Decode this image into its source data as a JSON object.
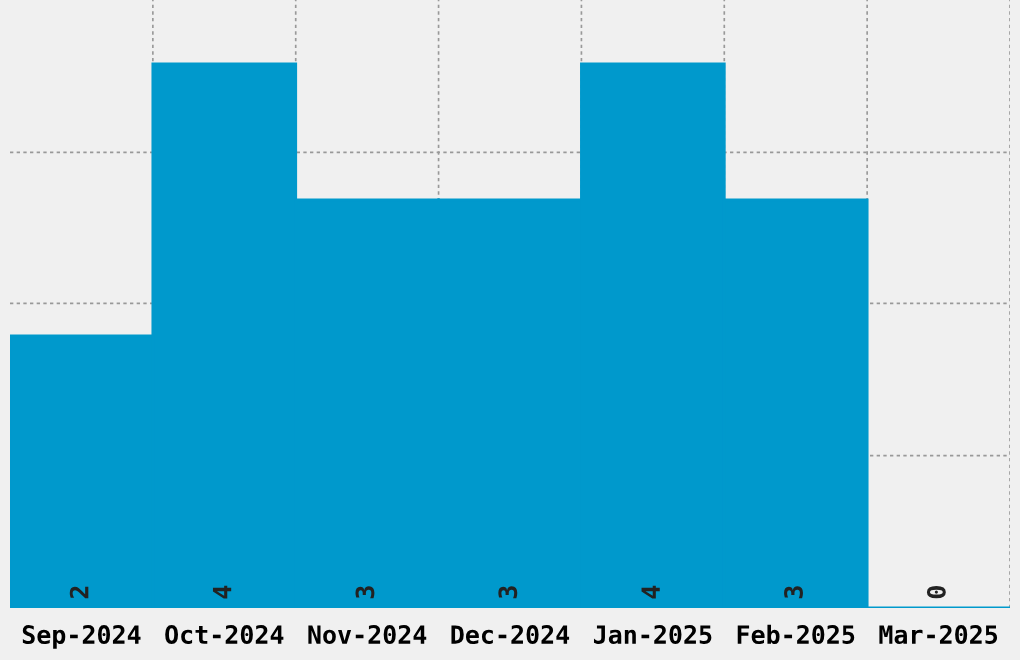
{
  "chart_data": {
    "type": "bar",
    "categories": [
      "Sep-2024",
      "Oct-2024",
      "Nov-2024",
      "Dec-2024",
      "Jan-2025",
      "Feb-2025",
      "Mar-2025"
    ],
    "values": [
      2,
      4,
      3,
      3,
      4,
      3,
      0
    ],
    "color": "#0099cc",
    "ylim": [
      0,
      4.47
    ],
    "yticks": [
      {
        "value": 1.12,
        "label": null
      },
      {
        "value": 2.24,
        "label": null
      },
      {
        "value": 3.35,
        "label": null
      }
    ],
    "tick_labels": "x",
    "data_labels": true,
    "grid": true
  }
}
